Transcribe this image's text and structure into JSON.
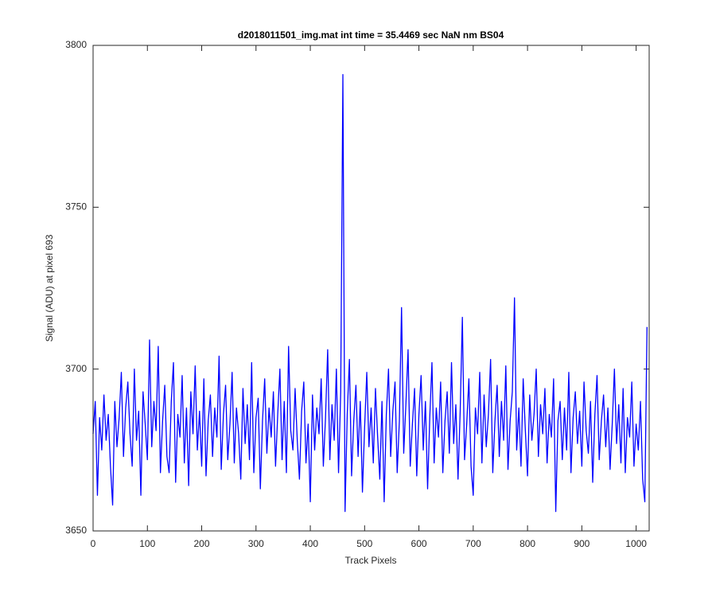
{
  "chart_data": {
    "type": "line",
    "title": "d2018011501_img.mat int time = 35.4469 sec  NaN nm BS04",
    "xlabel": "Track Pixels",
    "ylabel": "Signal (ADU) at pixel 693",
    "xlim": [
      0,
      1024
    ],
    "ylim": [
      3650,
      3800
    ],
    "xticks": [
      0,
      100,
      200,
      300,
      400,
      500,
      600,
      700,
      800,
      900,
      1000
    ],
    "yticks": [
      3650,
      3700,
      3750,
      3800
    ],
    "grid": false,
    "x": [
      0,
      4,
      8,
      12,
      16,
      20,
      24,
      28,
      32,
      36,
      40,
      44,
      48,
      52,
      56,
      60,
      64,
      68,
      72,
      76,
      80,
      84,
      88,
      92,
      96,
      100,
      104,
      108,
      112,
      116,
      120,
      124,
      128,
      132,
      136,
      140,
      144,
      148,
      152,
      156,
      160,
      164,
      168,
      172,
      176,
      180,
      184,
      188,
      192,
      196,
      200,
      204,
      208,
      212,
      216,
      220,
      224,
      228,
      232,
      236,
      240,
      244,
      248,
      252,
      256,
      260,
      264,
      268,
      272,
      276,
      280,
      284,
      288,
      292,
      296,
      300,
      304,
      308,
      312,
      316,
      320,
      324,
      328,
      332,
      336,
      340,
      344,
      348,
      352,
      356,
      360,
      364,
      368,
      372,
      376,
      380,
      384,
      388,
      392,
      396,
      400,
      404,
      408,
      412,
      416,
      420,
      424,
      428,
      432,
      436,
      440,
      444,
      448,
      452,
      456,
      460,
      464,
      468,
      472,
      476,
      480,
      484,
      488,
      492,
      496,
      500,
      504,
      508,
      512,
      516,
      520,
      524,
      528,
      532,
      536,
      540,
      544,
      548,
      552,
      556,
      560,
      564,
      568,
      572,
      576,
      580,
      584,
      588,
      592,
      596,
      600,
      604,
      608,
      612,
      616,
      620,
      624,
      628,
      632,
      636,
      640,
      644,
      648,
      652,
      656,
      660,
      664,
      668,
      672,
      676,
      680,
      684,
      688,
      692,
      696,
      700,
      704,
      708,
      712,
      716,
      720,
      724,
      728,
      732,
      736,
      740,
      744,
      748,
      752,
      756,
      760,
      764,
      768,
      772,
      776,
      780,
      784,
      788,
      792,
      796,
      800,
      804,
      808,
      812,
      816,
      820,
      824,
      828,
      832,
      836,
      840,
      844,
      848,
      852,
      856,
      860,
      864,
      868,
      872,
      876,
      880,
      884,
      888,
      892,
      896,
      900,
      904,
      908,
      912,
      916,
      920,
      924,
      928,
      932,
      936,
      940,
      944,
      948,
      952,
      956,
      960,
      964,
      968,
      972,
      976,
      980,
      984,
      988,
      992,
      996,
      1000,
      1004,
      1008,
      1012,
      1016,
      1020
    ],
    "series": [
      {
        "color": "#0000ff",
        "values": [
          3680,
          3690,
          3661,
          3685,
          3675,
          3692,
          3678,
          3686,
          3670,
          3658,
          3690,
          3676,
          3685,
          3699,
          3673,
          3688,
          3696,
          3680,
          3670,
          3700,
          3678,
          3687,
          3661,
          3693,
          3683,
          3672,
          3709,
          3676,
          3690,
          3681,
          3707,
          3668,
          3684,
          3695,
          3673,
          3668,
          3690,
          3702,
          3665,
          3686,
          3679,
          3698,
          3671,
          3688,
          3664,
          3693,
          3680,
          3701,
          3675,
          3687,
          3670,
          3697,
          3667,
          3684,
          3692,
          3673,
          3688,
          3679,
          3704,
          3669,
          3686,
          3695,
          3672,
          3683,
          3699,
          3671,
          3688,
          3680,
          3666,
          3694,
          3677,
          3689,
          3672,
          3702,
          3668,
          3685,
          3691,
          3663,
          3684,
          3697,
          3674,
          3688,
          3679,
          3693,
          3670,
          3686,
          3700,
          3672,
          3690,
          3668,
          3707,
          3681,
          3675,
          3694,
          3678,
          3666,
          3687,
          3696,
          3671,
          3683,
          3659,
          3692,
          3675,
          3688,
          3680,
          3697,
          3670,
          3685,
          3706,
          3672,
          3689,
          3678,
          3700,
          3668,
          3693,
          3791,
          3656,
          3686,
          3703,
          3667,
          3684,
          3695,
          3673,
          3690,
          3662,
          3682,
          3699,
          3676,
          3688,
          3671,
          3694,
          3679,
          3666,
          3690,
          3659,
          3686,
          3700,
          3673,
          3687,
          3696,
          3668,
          3684,
          3719,
          3674,
          3689,
          3706,
          3670,
          3683,
          3694,
          3667,
          3686,
          3698,
          3675,
          3690,
          3663,
          3685,
          3702,
          3671,
          3688,
          3679,
          3696,
          3668,
          3684,
          3693,
          3674,
          3702,
          3677,
          3689,
          3666,
          3687,
          3716,
          3672,
          3683,
          3697,
          3670,
          3661,
          3688,
          3680,
          3699,
          3671,
          3692,
          3676,
          3686,
          3703,
          3668,
          3684,
          3695,
          3673,
          3690,
          3678,
          3701,
          3669,
          3684,
          3693,
          3722,
          3675,
          3688,
          3670,
          3697,
          3681,
          3667,
          3692,
          3678,
          3686,
          3700,
          3673,
          3689,
          3680,
          3694,
          3671,
          3686,
          3679,
          3697,
          3656,
          3684,
          3690,
          3672,
          3688,
          3675,
          3699,
          3668,
          3685,
          3693,
          3677,
          3687,
          3670,
          3696,
          3681,
          3674,
          3690,
          3665,
          3686,
          3698,
          3672,
          3684,
          3692,
          3676,
          3688,
          3669,
          3683,
          3700,
          3677,
          3689,
          3671,
          3694,
          3668,
          3685,
          3679,
          3696,
          3670,
          3683,
          3675,
          3690,
          3666,
          3659,
          3713
        ]
      }
    ]
  }
}
